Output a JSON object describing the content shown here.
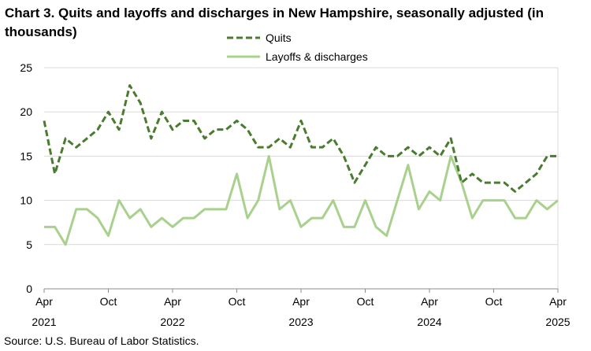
{
  "title": "Chart 3. Quits and layoffs and discharges in New Hampshire, seasonally adjusted (in thousands)",
  "source": "Source: U.S. Bureau of Labor Statistics.",
  "chart_data": {
    "type": "line",
    "title": "Chart 3. Quits and layoffs and discharges in New Hampshire, seasonally adjusted (in thousands)",
    "xlabel": "",
    "ylabel": "",
    "ylim": [
      0,
      25
    ],
    "yticks": [
      0,
      5,
      10,
      15,
      20,
      25
    ],
    "grid": true,
    "legend_position": "top-center",
    "x_start": "Apr 2021",
    "x_end": "Apr 2025",
    "x_tick_labels": [
      {
        "month": "Apr",
        "year": "2021"
      },
      {
        "month": "Oct",
        "year": ""
      },
      {
        "month": "Apr",
        "year": "2022"
      },
      {
        "month": "Oct",
        "year": ""
      },
      {
        "month": "Apr",
        "year": "2023"
      },
      {
        "month": "Oct",
        "year": ""
      },
      {
        "month": "Apr",
        "year": "2024"
      },
      {
        "month": "Oct",
        "year": ""
      },
      {
        "month": "Apr",
        "year": "2025"
      }
    ],
    "series": [
      {
        "name": "Quits",
        "color": "#4a7c2f",
        "style": "dashed",
        "values": [
          19,
          13,
          17,
          16,
          17,
          18,
          20,
          18,
          23,
          21,
          17,
          20,
          18,
          19,
          19,
          17,
          18,
          18,
          19,
          18,
          16,
          16,
          17,
          16,
          19,
          16,
          16,
          17,
          15,
          12,
          14,
          16,
          15,
          15,
          16,
          15,
          16,
          15,
          17,
          12,
          13,
          12,
          12,
          12,
          11,
          12,
          13,
          15,
          15
        ]
      },
      {
        "name": "Layoffs & discharges",
        "color": "#a9d18e",
        "style": "solid",
        "values": [
          7,
          7,
          5,
          9,
          9,
          8,
          6,
          10,
          8,
          9,
          7,
          8,
          7,
          8,
          8,
          9,
          9,
          9,
          13,
          8,
          10,
          15,
          9,
          10,
          7,
          8,
          8,
          10,
          7,
          7,
          10,
          7,
          6,
          10,
          14,
          9,
          11,
          10,
          15,
          12,
          8,
          10,
          10,
          10,
          8,
          8,
          10,
          9,
          10
        ]
      }
    ]
  }
}
